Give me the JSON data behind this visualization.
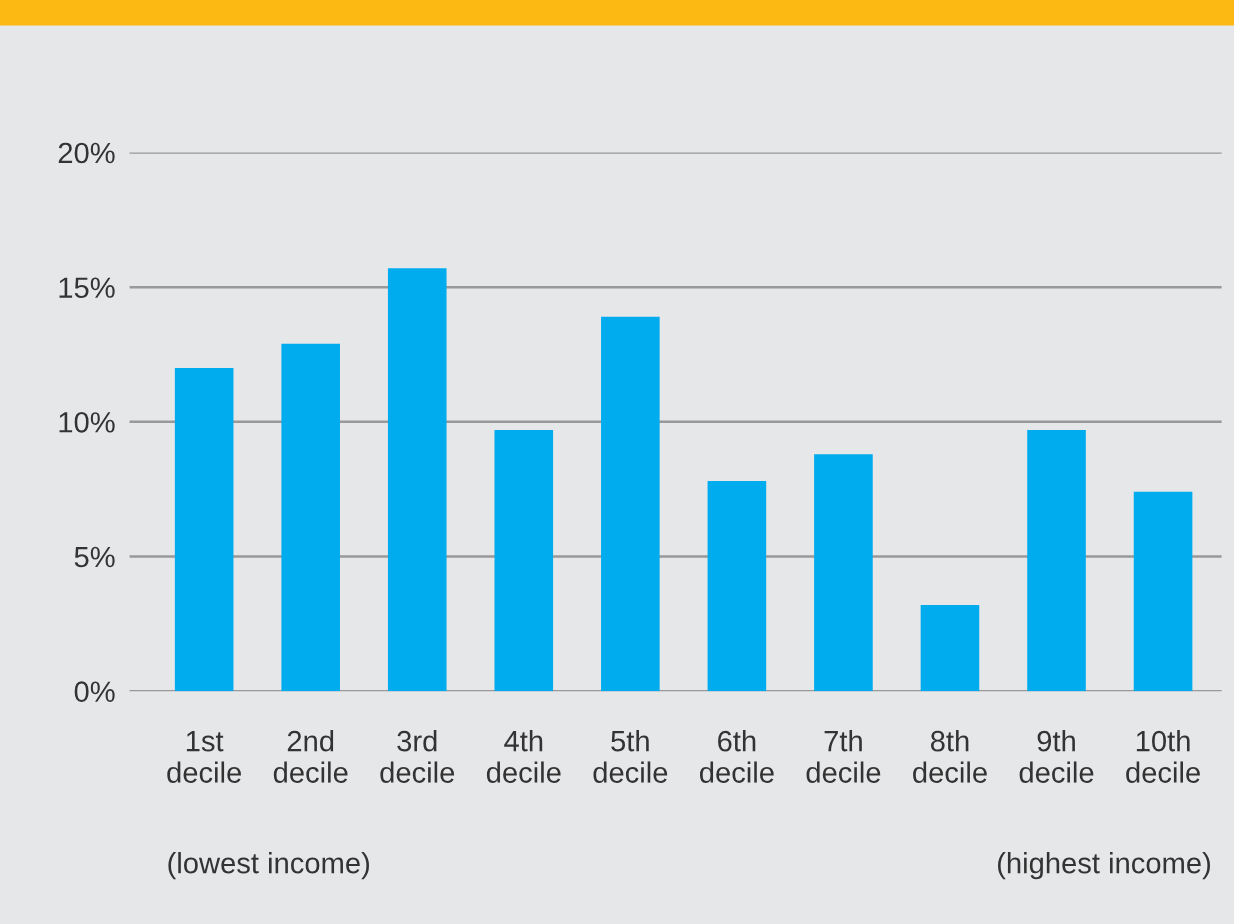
{
  "chart_data": {
    "type": "bar",
    "categories": [
      "1st\ndecile",
      "2nd\ndecile",
      "3rd\ndecile",
      "4th\ndecile",
      "5th\ndecile",
      "6th\ndecile",
      "7th\ndecile",
      "8th\ndecile",
      "9th\ndecile",
      "10th\ndecile"
    ],
    "values": [
      12.0,
      12.9,
      15.7,
      9.7,
      13.9,
      7.8,
      8.8,
      3.2,
      9.7,
      7.4
    ],
    "color": "#00aced",
    "ylim": [
      0,
      20
    ],
    "yticks": [
      {
        "value": 0,
        "label": "0%"
      },
      {
        "value": 5,
        "label": "5%"
      },
      {
        "value": 10,
        "label": "10%"
      },
      {
        "value": 15,
        "label": "15%"
      },
      {
        "value": 20,
        "label": "20%"
      }
    ],
    "grid": "y",
    "annotations": [
      "(lowest income)",
      "(highest income)"
    ]
  }
}
